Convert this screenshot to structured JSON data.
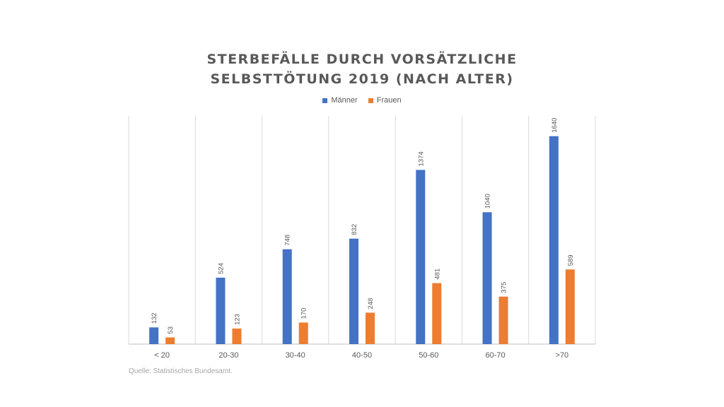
{
  "chart_data": {
    "type": "bar",
    "title_line1": "STERBEFÄLLE DURCH VORSÄTZLICHE",
    "title_line2": "SELBSTTÖTUNG 2019 (NACH ALTER)",
    "categories": [
      "< 20",
      "20-30",
      "30-40",
      "40-50",
      "50-60",
      "60-70",
      ">70"
    ],
    "series": [
      {
        "name": "Männer",
        "color": "#4472C4",
        "values": [
          132,
          524,
          748,
          832,
          1374,
          1040,
          1640
        ]
      },
      {
        "name": "Frauen",
        "color": "#ED7D31",
        "values": [
          53,
          123,
          170,
          248,
          481,
          375,
          589
        ]
      }
    ],
    "ylim": [
      0,
      1800
    ],
    "xlabel": "",
    "ylabel": "",
    "grid": "vertical separators",
    "legend_position": "top"
  },
  "source": "Quelle: Statistisches Bundesamt."
}
